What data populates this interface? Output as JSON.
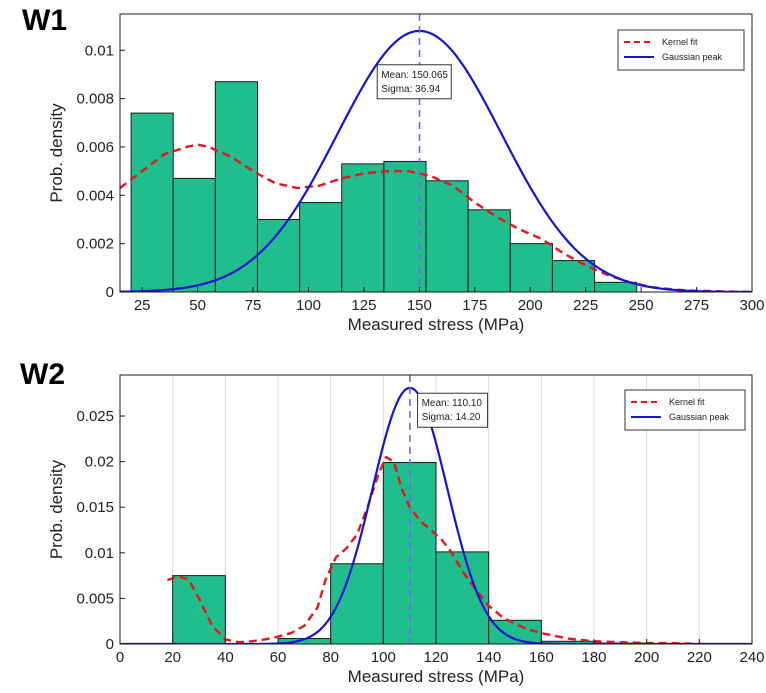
{
  "chart_data": [
    {
      "panel_label": "W1",
      "type": "bar",
      "xlabel": "Measured stress (MPa)",
      "ylabel": "Prob. density",
      "xlim": [
        15,
        300
      ],
      "ylim": [
        0,
        0.0115
      ],
      "grid": false,
      "legend_position": "top-right",
      "xticks": [
        {
          "value": 25,
          "label": "25"
        },
        {
          "value": 50,
          "label": "50"
        },
        {
          "value": 75,
          "label": "75"
        },
        {
          "value": 100,
          "label": "100"
        },
        {
          "value": 125,
          "label": "125"
        },
        {
          "value": 150,
          "label": "150"
        },
        {
          "value": 175,
          "label": "175"
        },
        {
          "value": 200,
          "label": "200"
        },
        {
          "value": 225,
          "label": "225"
        },
        {
          "value": 250,
          "label": "250"
        },
        {
          "value": 275,
          "label": "275"
        },
        {
          "value": 300,
          "label": "300"
        }
      ],
      "yticks": [
        {
          "value": 0,
          "label": "0"
        },
        {
          "value": 0.002,
          "label": "0.002"
        },
        {
          "value": 0.004,
          "label": "0.004"
        },
        {
          "value": 0.006,
          "label": "0.006"
        },
        {
          "value": 0.008,
          "label": "0.008"
        },
        {
          "value": 0.01,
          "label": "0.01"
        }
      ],
      "histogram": {
        "color": "#1fbe8c",
        "bins": [
          {
            "x0": 20,
            "x1": 39,
            "value": 0.0074
          },
          {
            "x0": 39,
            "x1": 58,
            "value": 0.0047
          },
          {
            "x0": 58,
            "x1": 77,
            "value": 0.0087
          },
          {
            "x0": 77,
            "x1": 96,
            "value": 0.003
          },
          {
            "x0": 96,
            "x1": 115,
            "value": 0.0037
          },
          {
            "x0": 115,
            "x1": 134,
            "value": 0.0053
          },
          {
            "x0": 134,
            "x1": 153,
            "value": 0.0054
          },
          {
            "x0": 153,
            "x1": 172,
            "value": 0.0046
          },
          {
            "x0": 172,
            "x1": 191,
            "value": 0.0034
          },
          {
            "x0": 191,
            "x1": 210,
            "value": 0.002
          },
          {
            "x0": 210,
            "x1": 229,
            "value": 0.0013
          },
          {
            "x0": 229,
            "x1": 248,
            "value": 0.0004
          }
        ]
      },
      "series": [
        {
          "name": "Kernel fit",
          "style": "dashed",
          "color": "#e8141b",
          "x": [
            15,
            25,
            35,
            45,
            50,
            55,
            65,
            75,
            85,
            95,
            105,
            115,
            125,
            135,
            145,
            155,
            165,
            175,
            185,
            195,
            205,
            215,
            225,
            235,
            245,
            255,
            265,
            275,
            290,
            300
          ],
          "y": [
            0.0043,
            0.005,
            0.0057,
            0.006,
            0.0061,
            0.006,
            0.0056,
            0.005,
            0.0045,
            0.0043,
            0.0044,
            0.0047,
            0.0049,
            0.005,
            0.005,
            0.0048,
            0.0044,
            0.0037,
            0.0031,
            0.0026,
            0.0022,
            0.0016,
            0.0011,
            0.0007,
            0.0004,
            0.0002,
            0.0001,
            5e-05,
            2e-05,
            0.0
          ]
        },
        {
          "name": "Gaussian peak",
          "style": "solid",
          "color": "#1414d2",
          "gaussian": {
            "mean": 150.065,
            "sigma": 36.94,
            "peak": 0.0108
          }
        }
      ],
      "mean_line": {
        "x": 150.065,
        "color": "#6b6bf0"
      },
      "annotation": {
        "lines": [
          "Mean: 150.065",
          "Sigma: 36.94"
        ],
        "anchor_x": 131,
        "anchor_y": 0.0094
      }
    },
    {
      "panel_label": "W2",
      "type": "bar",
      "xlabel": "Measured stress (MPa)",
      "ylabel": "Prob. density",
      "xlim": [
        0,
        240
      ],
      "ylim": [
        0,
        0.0295
      ],
      "grid": true,
      "legend_position": "top-right",
      "xticks": [
        {
          "value": 0,
          "label": "0"
        },
        {
          "value": 20,
          "label": "20"
        },
        {
          "value": 40,
          "label": "40"
        },
        {
          "value": 60,
          "label": "60"
        },
        {
          "value": 80,
          "label": "80"
        },
        {
          "value": 100,
          "label": "100"
        },
        {
          "value": 120,
          "label": "120"
        },
        {
          "value": 140,
          "label": "140"
        },
        {
          "value": 160,
          "label": "160"
        },
        {
          "value": 180,
          "label": "180"
        },
        {
          "value": 200,
          "label": "200"
        },
        {
          "value": 220,
          "label": "220"
        },
        {
          "value": 240,
          "label": "240"
        }
      ],
      "yticks": [
        {
          "value": 0,
          "label": "0"
        },
        {
          "value": 0.005,
          "label": "0.005"
        },
        {
          "value": 0.01,
          "label": "0.01"
        },
        {
          "value": 0.015,
          "label": "0.015"
        },
        {
          "value": 0.02,
          "label": "0.02"
        },
        {
          "value": 0.025,
          "label": "0.025"
        }
      ],
      "histogram": {
        "color": "#1fbe8c",
        "bins": [
          {
            "x0": 20,
            "x1": 40,
            "value": 0.0075
          },
          {
            "x0": 40,
            "x1": 60,
            "value": 0.0
          },
          {
            "x0": 60,
            "x1": 80,
            "value": 0.0006
          },
          {
            "x0": 80,
            "x1": 100,
            "value": 0.0088
          },
          {
            "x0": 100,
            "x1": 120,
            "value": 0.0199
          },
          {
            "x0": 120,
            "x1": 140,
            "value": 0.0101
          },
          {
            "x0": 140,
            "x1": 160,
            "value": 0.0026
          },
          {
            "x0": 160,
            "x1": 180,
            "value": 0.0003
          },
          {
            "x0": 180,
            "x1": 200,
            "value": 0.0001
          }
        ]
      },
      "series": [
        {
          "name": "Kernel fit",
          "style": "dashed",
          "color": "#e8141b",
          "x": [
            18,
            22,
            26,
            30,
            35,
            40,
            45,
            50,
            55,
            60,
            65,
            70,
            75,
            78,
            82,
            86,
            90,
            94,
            98,
            101,
            104,
            107,
            110,
            114,
            118,
            122,
            126,
            130,
            135,
            140,
            145,
            150,
            155,
            160,
            170,
            180,
            190,
            200,
            210,
            222
          ],
          "y": [
            0.007,
            0.0074,
            0.0071,
            0.005,
            0.002,
            0.0005,
            0.0002,
            0.0003,
            0.0005,
            0.0008,
            0.0012,
            0.002,
            0.004,
            0.007,
            0.0095,
            0.0105,
            0.012,
            0.015,
            0.0185,
            0.0205,
            0.02,
            0.017,
            0.015,
            0.0135,
            0.0125,
            0.0115,
            0.01,
            0.008,
            0.006,
            0.0042,
            0.003,
            0.0022,
            0.0016,
            0.0012,
            0.0006,
            0.0003,
            0.0002,
            0.0001,
            0.0001,
            0.0
          ]
        },
        {
          "name": "Gaussian peak",
          "style": "solid",
          "color": "#1414d2",
          "gaussian": {
            "mean": 110.1,
            "sigma": 14.2,
            "peak": 0.0281
          }
        }
      ],
      "mean_line": {
        "x": 110.1,
        "color": "#6b6bf0"
      },
      "annotation": {
        "lines": [
          "Mean: 110.10",
          "Sigma: 14.20"
        ],
        "anchor_x": 113,
        "anchor_y": 0.0275
      }
    }
  ]
}
